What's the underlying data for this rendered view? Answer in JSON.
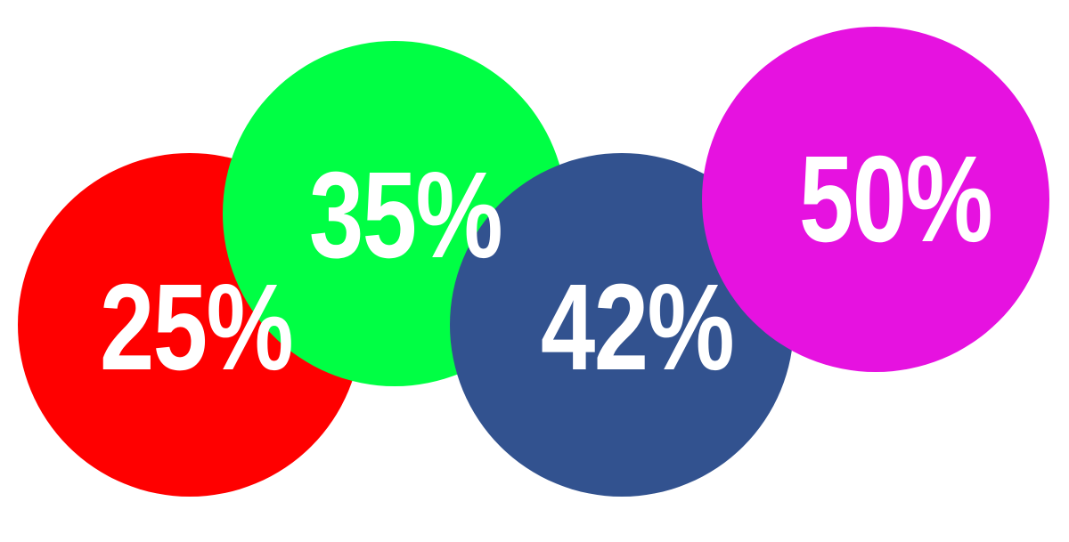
{
  "circles": [
    {
      "label": "25%",
      "color": "#ff0000"
    },
    {
      "label": "35%",
      "color": "#00ff44"
    },
    {
      "label": "42%",
      "color": "#32528f"
    },
    {
      "label": "50%",
      "color": "#e612e0"
    }
  ]
}
